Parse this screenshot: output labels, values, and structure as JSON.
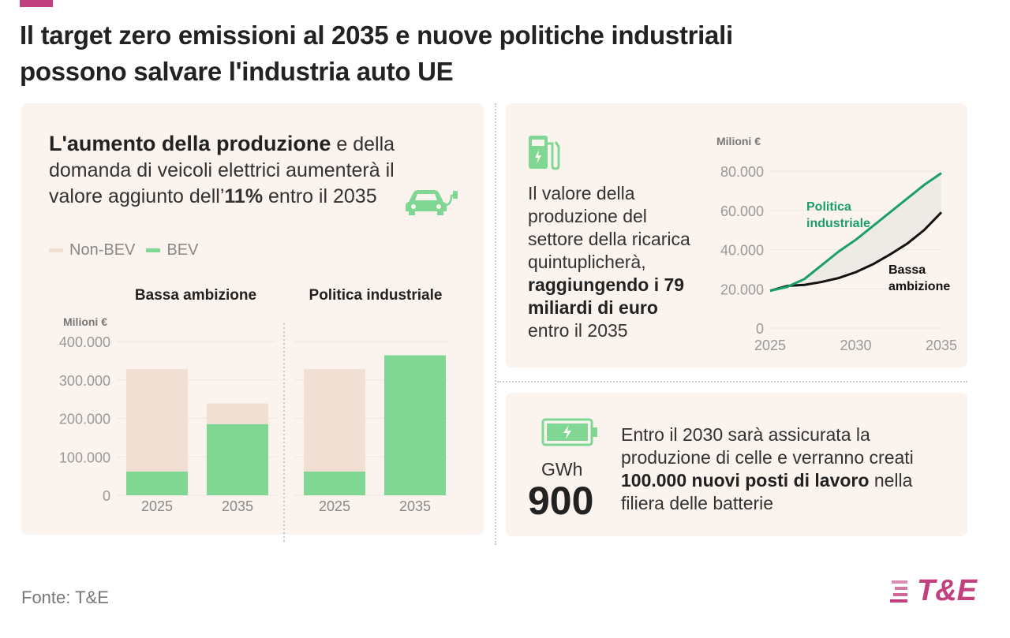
{
  "header": {
    "title_line1": "Il target zero emissioni al 2035 e nuove politiche industriali",
    "title_line2": "possono salvare l'industria auto UE"
  },
  "left": {
    "headline_bold": "L'aumento della produzione",
    "headline_rest1": " e della",
    "headline_line2": "domanda di veicoli elettrici aumenterà il",
    "headline_line3a": "valore aggiunto dell’",
    "headline_line3b": "11%",
    "headline_line3c": " entro il 2035",
    "legend": [
      {
        "label": "Non-BEV",
        "color": "#f0dfd2"
      },
      {
        "label": "BEV",
        "color": "#7fd793"
      }
    ],
    "group_titles": [
      "Bassa ambizione",
      "Politica industriale"
    ],
    "unit": "Milioni €"
  },
  "right_top": {
    "text1": "Il valore della",
    "text2": "produzione del",
    "text3": "settore della ricarica",
    "text4": "quintuplicherà,",
    "bold1": "raggiungendo i 79",
    "bold2": "miliardi di euro",
    "text5": "entro il 2035",
    "unit": "Milioni €",
    "label_green1": "Politica",
    "label_green2": "industriale",
    "label_black1": "Bassa",
    "label_black2": "ambizione"
  },
  "right_bottom": {
    "unit": "GWh",
    "value": "900",
    "line1": "Entro il 2030 sarà assicurata la",
    "line2": "produzione di celle e verranno creati",
    "bold": "100.000 nuovi posti di lavoro",
    "line3rest": " nella",
    "line4": "filiera delle batterie"
  },
  "footer": {
    "source": "Fonte: T&E",
    "logo": "T&E"
  },
  "colors": {
    "green": "#7fd793",
    "beige": "#f0dfd2",
    "line_green": "#1a9e6a",
    "pink": "#c2407e",
    "orange": "#f08a4b"
  },
  "chart_data": [
    {
      "type": "bar",
      "stacked": true,
      "title": "",
      "ylabel": "Milioni €",
      "ylim": [
        0,
        400000
      ],
      "yticks": [
        "0",
        "100.000",
        "200.000",
        "300.000",
        "400.000"
      ],
      "groups": [
        {
          "name": "Bassa ambizione",
          "categories": [
            "2025",
            "2035"
          ],
          "series": [
            {
              "name": "BEV",
              "values": [
                62000,
                185000
              ]
            },
            {
              "name": "Non-BEV",
              "values": [
                266000,
                54000
              ]
            }
          ]
        },
        {
          "name": "Politica industriale",
          "categories": [
            "2025",
            "2035"
          ],
          "series": [
            {
              "name": "BEV",
              "values": [
                62000,
                364000
              ]
            },
            {
              "name": "Non-BEV",
              "values": [
                266000,
                0
              ]
            }
          ]
        }
      ]
    },
    {
      "type": "line",
      "ylabel": "Milioni €",
      "ylim": [
        0,
        80000
      ],
      "yticks": [
        "0",
        "20.000",
        "40.000",
        "60.000",
        "80.000"
      ],
      "xticks": [
        "2025",
        "2030",
        "2035"
      ],
      "x": [
        2025,
        2026,
        2027,
        2028,
        2029,
        2030,
        2031,
        2032,
        2033,
        2034,
        2035
      ],
      "series": [
        {
          "name": "Politica industriale",
          "values": [
            19000,
            21000,
            25000,
            32000,
            39000,
            45000,
            52000,
            59000,
            66000,
            73000,
            79000
          ]
        },
        {
          "name": "Bassa ambizione",
          "values": [
            19000,
            21500,
            22000,
            23500,
            25500,
            28500,
            32500,
            37500,
            43000,
            50000,
            59000
          ]
        }
      ]
    }
  ]
}
